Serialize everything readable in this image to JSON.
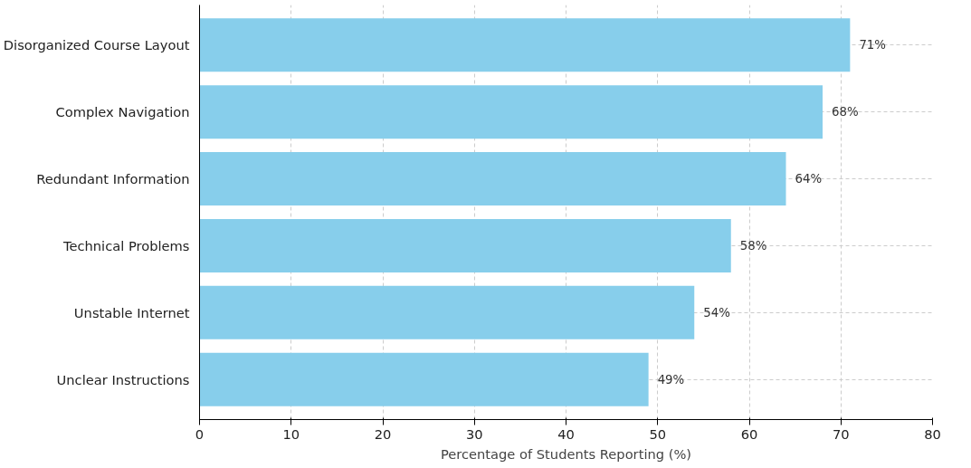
{
  "chart_data": {
    "type": "bar",
    "orientation": "horizontal",
    "xlabel": "Percentage of Students Reporting (%)",
    "categories": [
      "Disorganized Course Layout",
      "Complex Navigation",
      "Redundant Information",
      "Technical Problems",
      "Unstable Internet",
      "Unclear Instructions"
    ],
    "values": [
      71,
      68,
      64,
      58,
      54,
      49
    ],
    "value_labels": [
      "71%",
      "68%",
      "64%",
      "58%",
      "54%",
      "49%"
    ],
    "color": "#87ceeb",
    "xlim": [
      0,
      80
    ],
    "xticks": [
      0,
      10,
      20,
      30,
      40,
      50,
      60,
      70,
      80
    ],
    "grid": true
  }
}
